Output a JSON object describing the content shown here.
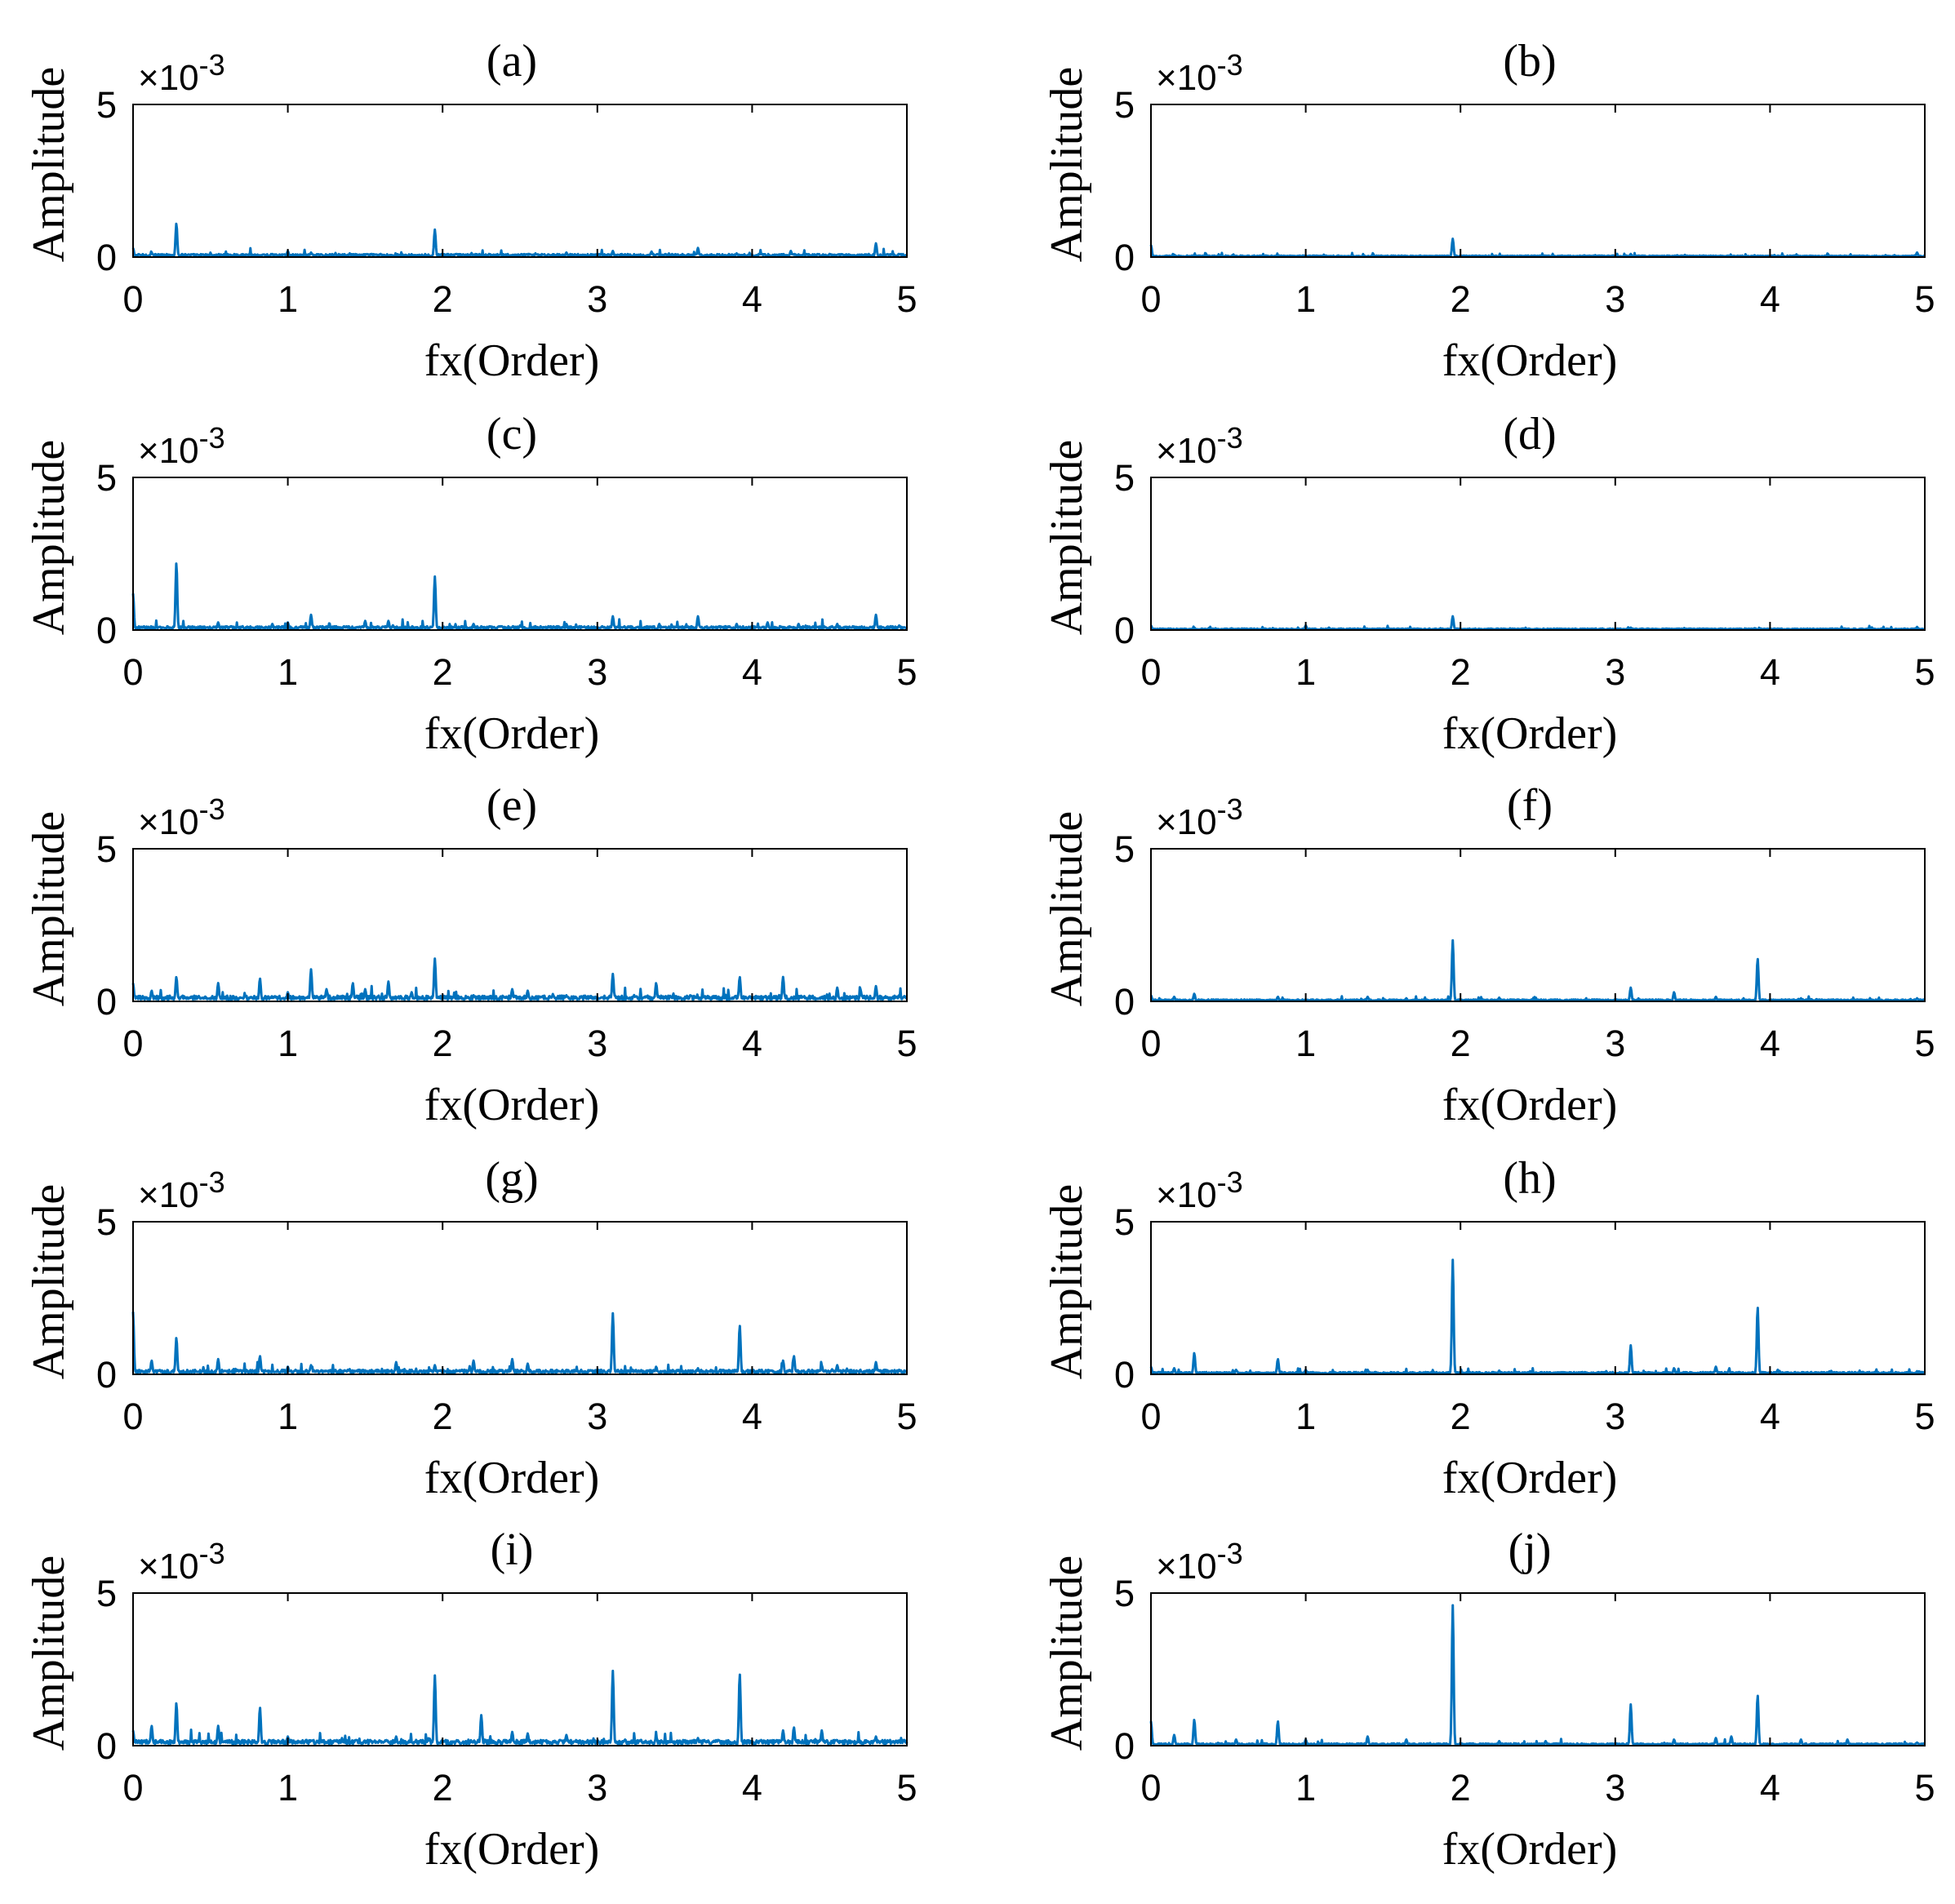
{
  "figure": {
    "line_color": "#0072BD",
    "axis_color": "#000000",
    "background": "#ffffff"
  },
  "chart_data": [
    {
      "panel": "(a)",
      "type": "line",
      "xlabel": "fx(Order)",
      "ylabel": "Amplitude",
      "exponent": "-3",
      "xlim": [
        0,
        5
      ],
      "ylim": [
        0,
        5
      ],
      "xticks": [
        "0",
        "1",
        "2",
        "3",
        "4",
        "5"
      ],
      "yticks": [
        "0",
        "5"
      ],
      "baseline": 0.08,
      "peaks": [
        [
          0.0,
          0.3
        ],
        [
          0.12,
          0.15
        ],
        [
          0.28,
          1.1
        ],
        [
          0.55,
          0.08
        ],
        [
          0.9,
          0.1
        ],
        [
          1.0,
          0.2
        ],
        [
          1.15,
          0.15
        ],
        [
          1.4,
          0.12
        ],
        [
          1.6,
          0.1
        ],
        [
          1.95,
          0.9
        ],
        [
          2.3,
          0.1
        ],
        [
          2.6,
          0.12
        ],
        [
          2.8,
          0.15
        ],
        [
          3.1,
          0.2
        ],
        [
          3.35,
          0.18
        ],
        [
          3.65,
          0.3
        ],
        [
          3.9,
          0.12
        ],
        [
          4.25,
          0.2
        ],
        [
          4.5,
          0.1
        ],
        [
          4.8,
          0.45
        ],
        [
          4.95,
          0.1
        ]
      ]
    },
    {
      "panel": "(b)",
      "type": "line",
      "xlabel": "fx(Order)",
      "ylabel": "Amplitude",
      "exponent": "-3",
      "xlim": [
        0,
        5
      ],
      "ylim": [
        0,
        5
      ],
      "xticks": [
        "0",
        "1",
        "2",
        "3",
        "4",
        "5"
      ],
      "yticks": [
        "0",
        "5"
      ],
      "baseline": 0.04,
      "peaks": [
        [
          0.0,
          0.4
        ],
        [
          0.15,
          0.08
        ],
        [
          0.28,
          0.06
        ],
        [
          1.0,
          0.05
        ],
        [
          1.95,
          0.6
        ],
        [
          3.1,
          0.1
        ],
        [
          3.4,
          0.06
        ],
        [
          3.9,
          0.06
        ],
        [
          4.95,
          0.15
        ]
      ]
    },
    {
      "panel": "(c)",
      "type": "line",
      "xlabel": "fx(Order)",
      "ylabel": "Amplitude",
      "exponent": "-3",
      "xlim": [
        0,
        5
      ],
      "ylim": [
        0,
        5
      ],
      "xticks": [
        "0",
        "1",
        "2",
        "3",
        "4",
        "5"
      ],
      "yticks": [
        "0",
        "5"
      ],
      "baseline": 0.1,
      "peaks": [
        [
          0.0,
          1.2
        ],
        [
          0.28,
          2.2
        ],
        [
          0.55,
          0.25
        ],
        [
          0.9,
          0.2
        ],
        [
          1.0,
          0.25
        ],
        [
          1.15,
          0.5
        ],
        [
          1.5,
          0.3
        ],
        [
          1.65,
          0.3
        ],
        [
          1.95,
          1.75
        ],
        [
          2.2,
          0.2
        ],
        [
          2.5,
          0.15
        ],
        [
          2.8,
          0.2
        ],
        [
          3.1,
          0.45
        ],
        [
          3.4,
          0.2
        ],
        [
          3.65,
          0.45
        ],
        [
          3.9,
          0.2
        ],
        [
          4.1,
          0.25
        ],
        [
          4.3,
          0.2
        ],
        [
          4.55,
          0.2
        ],
        [
          4.8,
          0.5
        ],
        [
          4.95,
          0.15
        ]
      ]
    },
    {
      "panel": "(d)",
      "type": "line",
      "xlabel": "fx(Order)",
      "ylabel": "Amplitude",
      "exponent": "-3",
      "xlim": [
        0,
        5
      ],
      "ylim": [
        0,
        5
      ],
      "xticks": [
        "0",
        "1",
        "2",
        "3",
        "4",
        "5"
      ],
      "yticks": [
        "0",
        "5"
      ],
      "baseline": 0.04,
      "peaks": [
        [
          0.0,
          0.15
        ],
        [
          0.28,
          0.08
        ],
        [
          1.0,
          0.15
        ],
        [
          1.15,
          0.08
        ],
        [
          1.95,
          0.45
        ],
        [
          3.1,
          0.08
        ],
        [
          3.9,
          0.06
        ],
        [
          4.95,
          0.1
        ]
      ]
    },
    {
      "panel": "(e)",
      "type": "line",
      "xlabel": "fx(Order)",
      "ylabel": "Amplitude",
      "exponent": "-3",
      "xlim": [
        0,
        5
      ],
      "ylim": [
        0,
        5
      ],
      "xticks": [
        "0",
        "1",
        "2",
        "3",
        "4",
        "5"
      ],
      "yticks": [
        "0",
        "5"
      ],
      "baseline": 0.15,
      "peaks": [
        [
          0.0,
          0.6
        ],
        [
          0.12,
          0.35
        ],
        [
          0.28,
          0.8
        ],
        [
          0.55,
          0.6
        ],
        [
          0.82,
          0.75
        ],
        [
          1.0,
          0.3
        ],
        [
          1.15,
          1.05
        ],
        [
          1.25,
          0.4
        ],
        [
          1.42,
          0.6
        ],
        [
          1.5,
          0.4
        ],
        [
          1.65,
          0.65
        ],
        [
          1.8,
          0.3
        ],
        [
          1.95,
          1.4
        ],
        [
          2.2,
          0.2
        ],
        [
          2.45,
          0.4
        ],
        [
          2.55,
          0.35
        ],
        [
          2.8,
          0.2
        ],
        [
          3.1,
          0.9
        ],
        [
          3.38,
          0.6
        ],
        [
          3.6,
          0.2
        ],
        [
          3.92,
          0.8
        ],
        [
          4.2,
          0.8
        ],
        [
          4.55,
          0.45
        ],
        [
          4.7,
          0.4
        ],
        [
          4.8,
          0.5
        ],
        [
          4.95,
          0.2
        ]
      ]
    },
    {
      "panel": "(f)",
      "type": "line",
      "xlabel": "fx(Order)",
      "ylabel": "Amplitude",
      "exponent": "-3",
      "xlim": [
        0,
        5
      ],
      "ylim": [
        0,
        5
      ],
      "xticks": [
        "0",
        "1",
        "2",
        "3",
        "4",
        "5"
      ],
      "yticks": [
        "0",
        "5"
      ],
      "baseline": 0.05,
      "peaks": [
        [
          0.0,
          0.2
        ],
        [
          0.15,
          0.15
        ],
        [
          0.28,
          0.25
        ],
        [
          0.82,
          0.15
        ],
        [
          1.4,
          0.15
        ],
        [
          1.65,
          0.1
        ],
        [
          1.95,
          2.0
        ],
        [
          2.25,
          0.12
        ],
        [
          3.1,
          0.45
        ],
        [
          3.38,
          0.3
        ],
        [
          3.65,
          0.15
        ],
        [
          3.92,
          1.4
        ],
        [
          4.2,
          0.1
        ],
        [
          4.95,
          0.1
        ]
      ]
    },
    {
      "panel": "(g)",
      "type": "line",
      "xlabel": "fx(Order)",
      "ylabel": "Amplitude",
      "exponent": "-3",
      "xlim": [
        0,
        5
      ],
      "ylim": [
        0,
        5
      ],
      "xticks": [
        "0",
        "1",
        "2",
        "3",
        "4",
        "5"
      ],
      "yticks": [
        "0",
        "5"
      ],
      "baseline": 0.12,
      "peaks": [
        [
          0.0,
          2.05
        ],
        [
          0.12,
          0.45
        ],
        [
          0.28,
          1.2
        ],
        [
          0.55,
          0.5
        ],
        [
          0.82,
          0.6
        ],
        [
          1.0,
          0.25
        ],
        [
          1.15,
          0.3
        ],
        [
          1.7,
          0.4
        ],
        [
          1.95,
          0.3
        ],
        [
          2.2,
          0.45
        ],
        [
          2.45,
          0.5
        ],
        [
          2.55,
          0.35
        ],
        [
          3.1,
          2.0
        ],
        [
          3.38,
          0.25
        ],
        [
          3.65,
          0.2
        ],
        [
          3.92,
          1.6
        ],
        [
          4.2,
          0.45
        ],
        [
          4.27,
          0.6
        ],
        [
          4.45,
          0.3
        ],
        [
          4.55,
          0.3
        ],
        [
          4.8,
          0.4
        ],
        [
          4.95,
          0.15
        ]
      ]
    },
    {
      "panel": "(h)",
      "type": "line",
      "xlabel": "fx(Order)",
      "ylabel": "Amplitude",
      "exponent": "-3",
      "xlim": [
        0,
        5
      ],
      "ylim": [
        0,
        5
      ],
      "xticks": [
        "0",
        "1",
        "2",
        "3",
        "4",
        "5"
      ],
      "yticks": [
        "0",
        "5"
      ],
      "baseline": 0.06,
      "peaks": [
        [
          0.0,
          0.25
        ],
        [
          0.15,
          0.2
        ],
        [
          0.28,
          0.7
        ],
        [
          0.55,
          0.15
        ],
        [
          0.82,
          0.5
        ],
        [
          1.0,
          0.15
        ],
        [
          1.4,
          0.15
        ],
        [
          1.95,
          3.75
        ],
        [
          2.25,
          0.12
        ],
        [
          3.1,
          0.95
        ],
        [
          3.38,
          0.2
        ],
        [
          3.65,
          0.25
        ],
        [
          3.92,
          2.2
        ],
        [
          4.05,
          0.15
        ],
        [
          4.95,
          0.1
        ]
      ]
    },
    {
      "panel": "(i)",
      "type": "line",
      "xlabel": "fx(Order)",
      "ylabel": "Amplitude",
      "exponent": "-3",
      "xlim": [
        0,
        5
      ],
      "ylim": [
        0,
        5
      ],
      "xticks": [
        "0",
        "1",
        "2",
        "3",
        "4",
        "5"
      ],
      "yticks": [
        "0",
        "5"
      ],
      "baseline": 0.15,
      "peaks": [
        [
          0.0,
          0.5
        ],
        [
          0.12,
          0.65
        ],
        [
          0.28,
          1.4
        ],
        [
          0.55,
          0.65
        ],
        [
          0.82,
          1.25
        ],
        [
          1.0,
          0.3
        ],
        [
          1.35,
          0.25
        ],
        [
          1.7,
          0.3
        ],
        [
          1.95,
          2.3
        ],
        [
          2.25,
          1.0
        ],
        [
          2.45,
          0.45
        ],
        [
          2.55,
          0.4
        ],
        [
          2.8,
          0.35
        ],
        [
          3.1,
          2.45
        ],
        [
          3.38,
          0.3
        ],
        [
          3.65,
          0.25
        ],
        [
          3.92,
          2.35
        ],
        [
          4.2,
          0.5
        ],
        [
          4.27,
          0.6
        ],
        [
          4.45,
          0.5
        ],
        [
          4.8,
          0.3
        ],
        [
          4.95,
          0.15
        ]
      ]
    },
    {
      "panel": "(j)",
      "type": "line",
      "xlabel": "fx(Order)",
      "ylabel": "Amplitude",
      "exponent": "-3",
      "xlim": [
        0,
        5
      ],
      "ylim": [
        0,
        5
      ],
      "xticks": [
        "0",
        "1",
        "2",
        "3",
        "4",
        "5"
      ],
      "yticks": [
        "0",
        "5"
      ],
      "baseline": 0.06,
      "peaks": [
        [
          0.0,
          0.8
        ],
        [
          0.15,
          0.35
        ],
        [
          0.28,
          0.85
        ],
        [
          0.55,
          0.2
        ],
        [
          0.82,
          0.8
        ],
        [
          1.0,
          0.2
        ],
        [
          1.4,
          0.3
        ],
        [
          1.65,
          0.2
        ],
        [
          1.95,
          4.6
        ],
        [
          2.25,
          0.15
        ],
        [
          2.55,
          0.15
        ],
        [
          3.1,
          1.35
        ],
        [
          3.38,
          0.2
        ],
        [
          3.65,
          0.25
        ],
        [
          3.75,
          0.3
        ],
        [
          3.92,
          1.65
        ],
        [
          4.2,
          0.2
        ],
        [
          4.5,
          0.2
        ],
        [
          4.95,
          0.1
        ]
      ]
    }
  ]
}
